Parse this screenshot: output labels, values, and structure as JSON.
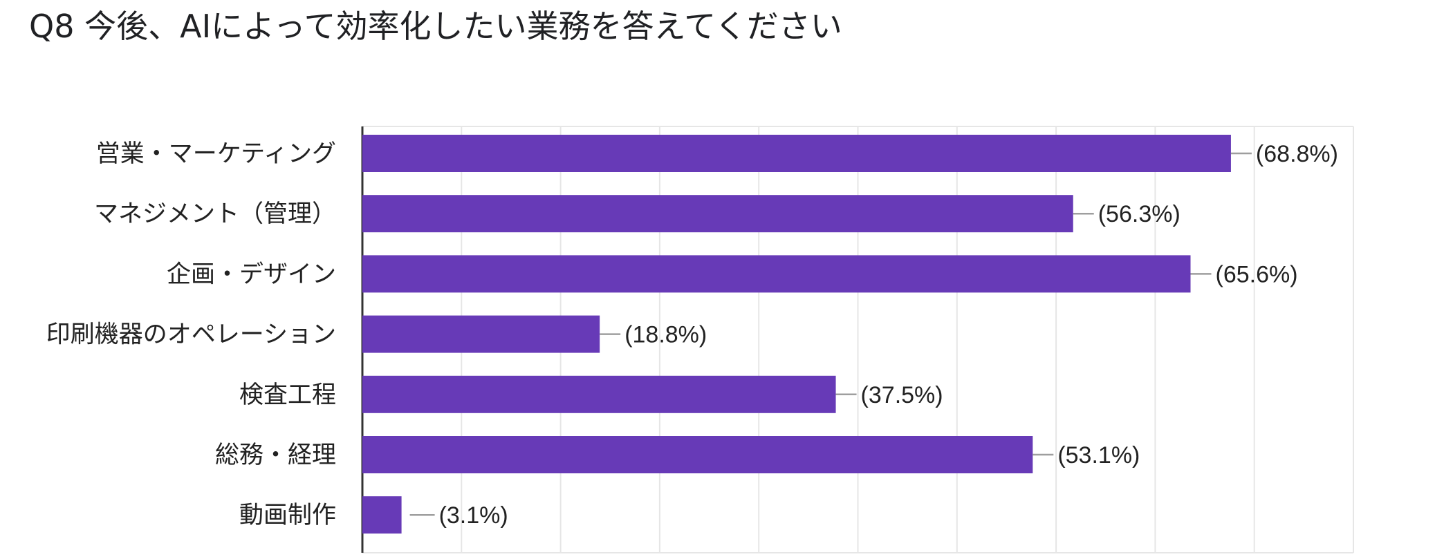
{
  "title": "Q8 今後、AIによって効率化したい業務を答えてください",
  "colors": {
    "bar": "#673AB7",
    "axis": "#333333",
    "grid": "#E6E6E6",
    "leader": "#9E9E9E"
  },
  "chart_data": {
    "type": "bar",
    "orientation": "horizontal",
    "title": "Q8 今後、AIによって効率化したい業務を答えてください",
    "categories": [
      "営業・マーケティング",
      "マネジメント（管理）",
      "企画・デザイン",
      "印刷機器のオペレーション",
      "検査工程",
      "総務・経理",
      "動画制作"
    ],
    "values": [
      68.8,
      56.3,
      65.6,
      18.8,
      37.5,
      53.1,
      3.1
    ],
    "value_labels": [
      "(68.8%)",
      "(56.3%)",
      "(65.6%)",
      "(18.8%)",
      "(37.5%)",
      "(53.1%)",
      "(3.1%)"
    ],
    "xlim": [
      0,
      78.5
    ],
    "grid": true,
    "legend": "none"
  }
}
